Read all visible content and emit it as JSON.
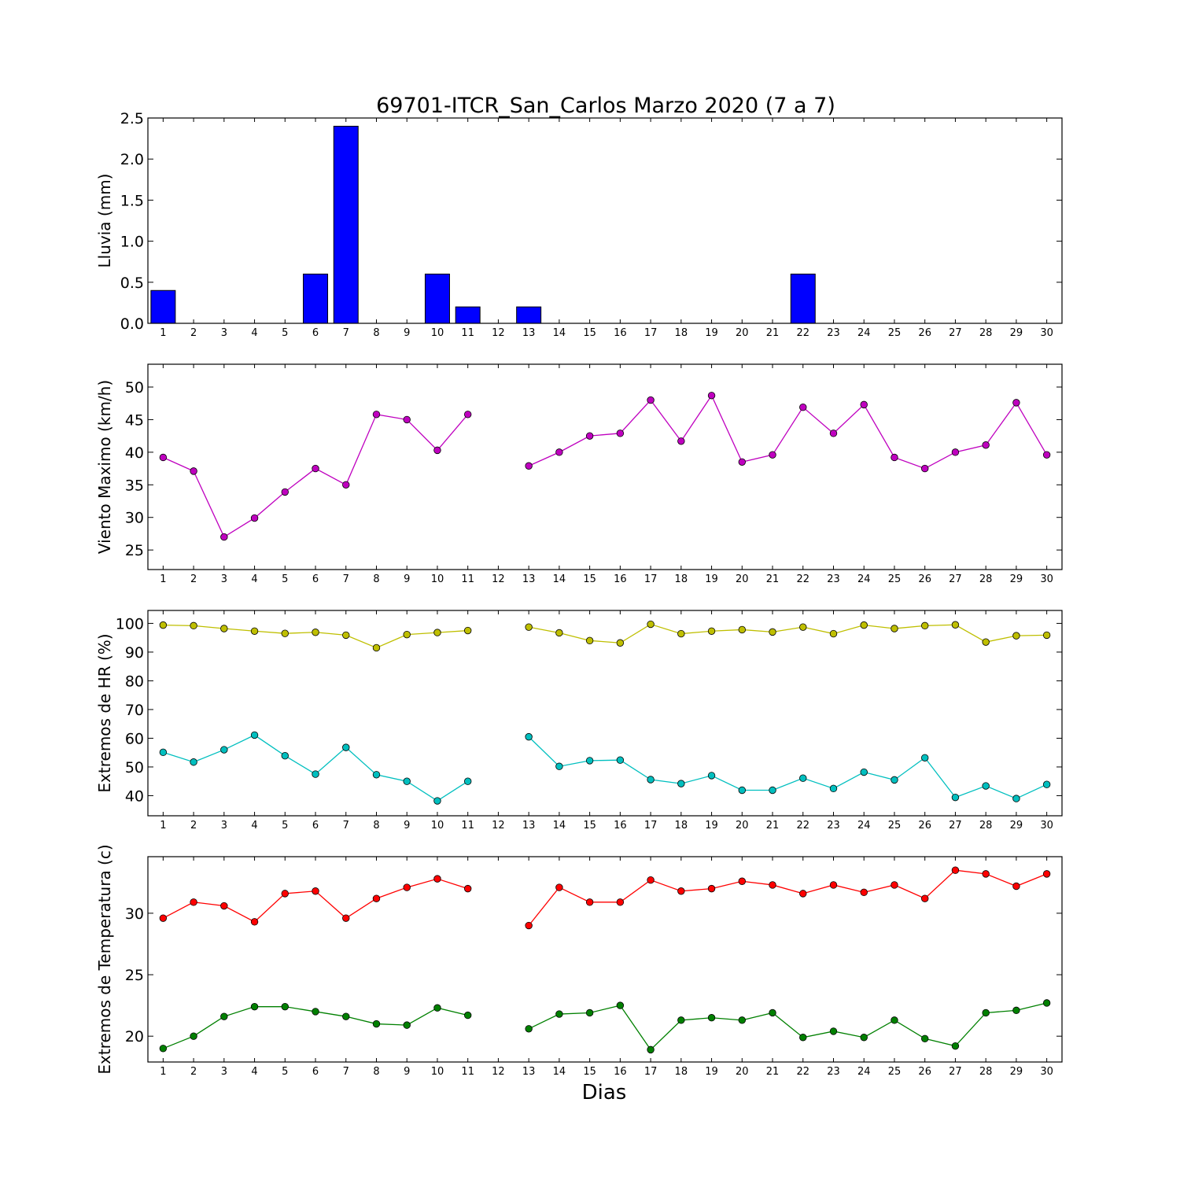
{
  "chart_data": {
    "title": "69701-ITCR_San_Carlos Marzo 2020  (7 a 7)",
    "xlabel": "Dias",
    "days": [
      1,
      2,
      3,
      4,
      5,
      6,
      7,
      8,
      9,
      10,
      11,
      12,
      13,
      14,
      15,
      16,
      17,
      18,
      19,
      20,
      21,
      22,
      23,
      24,
      25,
      26,
      27,
      28,
      29,
      30
    ],
    "panels": [
      {
        "type": "bar",
        "ylabel": "Lluvia (mm)",
        "ylim": [
          0,
          2.5
        ],
        "yticks": [
          0.0,
          0.5,
          1.0,
          1.5,
          2.0,
          2.5
        ],
        "ytick_labels": [
          "0.0",
          "0.5",
          "1.0",
          "1.5",
          "2.0",
          "2.5"
        ],
        "series": [
          {
            "color": "#0000ff",
            "values": [
              0.4,
              0,
              0,
              0,
              0,
              0.6,
              2.4,
              0,
              0,
              0.6,
              0.2,
              0,
              0.2,
              0,
              0,
              0,
              0,
              0,
              0,
              0,
              0,
              0.6,
              0,
              0,
              0,
              0,
              0,
              0,
              0,
              0
            ]
          }
        ]
      },
      {
        "type": "line",
        "ylabel": "Viento Maximo (km/h)",
        "ylim": [
          22,
          53.5
        ],
        "yticks": [
          25,
          30,
          35,
          40,
          45,
          50
        ],
        "ytick_labels": [
          "25",
          "30",
          "35",
          "40",
          "45",
          "50"
        ],
        "series": [
          {
            "color": "#bf00bf",
            "values": [
              39.2,
              37.1,
              27.0,
              29.9,
              33.9,
              37.5,
              35.0,
              45.8,
              45.0,
              40.3,
              45.8,
              null,
              37.9,
              40.0,
              42.5,
              42.9,
              48.0,
              41.7,
              48.7,
              38.5,
              39.6,
              46.9,
              42.9,
              47.3,
              39.2,
              37.5,
              40.0,
              41.1,
              47.6,
              39.6
            ]
          }
        ]
      },
      {
        "type": "line",
        "ylabel": "Extremos de HR (%)",
        "ylim": [
          33,
          104.5
        ],
        "yticks": [
          40,
          50,
          60,
          70,
          80,
          90,
          100
        ],
        "ytick_labels": [
          "40",
          "50",
          "60",
          "70",
          "80",
          "90",
          "100"
        ],
        "series": [
          {
            "color": "#bfbf00",
            "values": [
              99.4,
              99.2,
              98.2,
              97.3,
              96.5,
              96.9,
              95.9,
              91.5,
              96.1,
              96.8,
              97.5,
              null,
              98.7,
              96.7,
              94.0,
              93.2,
              99.7,
              96.4,
              97.3,
              97.8,
              97.0,
              98.7,
              96.4,
              99.4,
              98.2,
              99.2,
              99.5,
              93.5,
              95.7,
              95.9
            ]
          },
          {
            "color": "#00bfbf",
            "values": [
              55.1,
              51.7,
              56.0,
              61.1,
              53.9,
              47.5,
              56.8,
              47.3,
              45.0,
              38.2,
              45.0,
              null,
              60.5,
              50.2,
              52.2,
              52.4,
              45.6,
              44.2,
              47.0,
              41.9,
              41.9,
              46.1,
              42.5,
              48.2,
              45.5,
              53.2,
              39.4,
              43.4,
              39.0,
              43.9
            ]
          }
        ]
      },
      {
        "type": "line",
        "ylabel": "Extremos de Temperatura (c)",
        "ylim": [
          17.9,
          34.6
        ],
        "yticks": [
          20,
          25,
          30
        ],
        "ytick_labels": [
          "20",
          "25",
          "30"
        ],
        "series": [
          {
            "color": "#ff0000",
            "values": [
              29.6,
              30.9,
              30.6,
              29.3,
              31.6,
              31.8,
              29.6,
              31.2,
              32.1,
              32.8,
              32.0,
              null,
              29.0,
              32.1,
              30.9,
              30.9,
              32.7,
              31.8,
              32.0,
              32.6,
              32.3,
              31.6,
              32.3,
              31.7,
              32.3,
              31.2,
              33.5,
              33.2,
              32.2,
              33.2
            ]
          },
          {
            "color": "#008000",
            "values": [
              19.0,
              20.0,
              21.6,
              22.4,
              22.4,
              22.0,
              21.6,
              21.0,
              20.9,
              22.3,
              21.7,
              null,
              20.6,
              21.8,
              21.9,
              22.5,
              18.9,
              21.3,
              21.5,
              21.3,
              21.9,
              19.9,
              20.4,
              19.9,
              21.3,
              19.8,
              19.2,
              21.9,
              22.1,
              22.7
            ]
          }
        ]
      }
    ]
  }
}
